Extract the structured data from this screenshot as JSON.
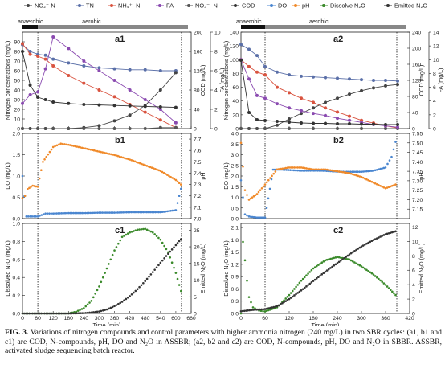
{
  "legend": {
    "items": [
      {
        "label": "NO₂⁻-N",
        "color": "#444444"
      },
      {
        "label": "TN",
        "color": "#5a6fa8"
      },
      {
        "label": "NH₄⁺- N",
        "color": "#d9533f"
      },
      {
        "label": "FA",
        "color": "#8a4ab0"
      },
      {
        "label": "NO₃⁻- N",
        "color": "#555555"
      },
      {
        "label": "COD",
        "color": "#333333"
      },
      {
        "label": "DO",
        "color": "#4a86d0"
      },
      {
        "label": "pH",
        "color": "#f08a2a"
      },
      {
        "label": "Dissolve N₂O",
        "color": "#3a8a2a"
      },
      {
        "label": "Emitted N₂O",
        "color": "#333333"
      }
    ]
  },
  "phase_labels": {
    "anaerobic": "anaerobic",
    "aerobic": "aerobic"
  },
  "panel_labels": [
    "a1",
    "a2",
    "b1",
    "b2",
    "c1",
    "c2"
  ],
  "axis_titles": {
    "nitrogen": "Nitrogen concentrations (mg/L)",
    "cod": "COD (mg/L)",
    "fa": "FA (mg/L)",
    "do": "DO (mg/L)",
    "ph": "pH",
    "dissolved_n2o": "Dissolved N₂O (mg/L)",
    "emitted_n2o": "Emitted N₂O (mg/L)",
    "time": "Time (min)"
  },
  "chart_data": [
    {
      "panel": "a1",
      "type": "line",
      "xlim": [
        0,
        660
      ],
      "ylim": [
        0,
        100
      ],
      "y2lim": [
        0,
        200
      ],
      "y3lim": [
        0,
        10
      ],
      "x_ticks": [
        "0",
        "60",
        "120",
        "180",
        "240",
        "300",
        "360",
        "420",
        "480",
        "540",
        "600",
        "660"
      ],
      "y_ticks": [
        "0",
        "10",
        "20",
        "30",
        "40",
        "50",
        "60",
        "70",
        "80",
        "90"
      ],
      "y2_ticks": [
        "0",
        "40",
        "80",
        "120",
        "160",
        "200"
      ],
      "y3_ticks": [
        "0",
        "2",
        "4",
        "6",
        "8",
        "10"
      ],
      "series": [
        {
          "name": "TN",
          "x": [
            0,
            30,
            60,
            90,
            120,
            180,
            240,
            300,
            360,
            420,
            480,
            540,
            600
          ],
          "values": [
            87,
            80,
            77,
            76,
            72,
            68,
            65,
            63,
            62,
            61,
            61,
            60,
            60
          ]
        },
        {
          "name": "NH₄⁺- N",
          "x": [
            0,
            30,
            60,
            90,
            120,
            180,
            240,
            300,
            360,
            420,
            480,
            540,
            600
          ],
          "values": [
            88,
            77,
            75,
            72,
            65,
            55,
            47,
            40,
            33,
            25,
            17,
            9,
            1
          ]
        },
        {
          "name": "NO₂⁻-N",
          "x": [
            0,
            30,
            60,
            90,
            120,
            180,
            240,
            300,
            360,
            420,
            480,
            540,
            600
          ],
          "values": [
            0,
            0,
            0,
            0,
            0,
            0,
            1,
            3,
            8,
            14,
            24,
            40,
            58
          ]
        },
        {
          "name": "NO₃⁻- N",
          "x": [
            0,
            60,
            120,
            180,
            240,
            300,
            360,
            420,
            480,
            540,
            600
          ],
          "values": [
            0,
            0,
            0,
            0,
            0,
            0,
            0,
            0,
            0,
            1,
            1
          ]
        },
        {
          "name": "FA",
          "x": [
            0,
            30,
            60,
            90,
            120,
            180,
            240,
            300,
            360,
            420,
            480,
            540,
            600
          ],
          "values": [
            2.6,
            3.5,
            3.8,
            6.2,
            9.5,
            8.3,
            7.0,
            6.0,
            5.0,
            4.0,
            3.0,
            2.0,
            0.6
          ]
        },
        {
          "name": "COD",
          "x": [
            0,
            30,
            60,
            90,
            120,
            180,
            240,
            300,
            360,
            420,
            480,
            540,
            600
          ],
          "values": [
            160,
            90,
            65,
            60,
            55,
            52,
            50,
            49,
            48,
            47,
            46,
            45,
            44
          ]
        }
      ]
    },
    {
      "panel": "a2",
      "type": "line",
      "xlim": [
        0,
        420
      ],
      "ylim": [
        0,
        140
      ],
      "y2lim": [
        0,
        240
      ],
      "y3lim": [
        0,
        14
      ],
      "x_ticks": [
        "0",
        "60",
        "120",
        "180",
        "240",
        "300",
        "360",
        "420"
      ],
      "y_ticks": [
        "0",
        "20",
        "40",
        "60",
        "80",
        "100",
        "120",
        "140"
      ],
      "y2_ticks": [
        "0",
        "40",
        "80",
        "120",
        "160",
        "200",
        "240"
      ],
      "y3_ticks": [
        "0",
        "2",
        "4",
        "6",
        "8",
        "10",
        "12",
        "14"
      ],
      "series": [
        {
          "name": "TN",
          "x": [
            0,
            20,
            40,
            60,
            90,
            120,
            150,
            180,
            210,
            240,
            270,
            300,
            330,
            360,
            390
          ],
          "values": [
            122,
            115,
            106,
            90,
            82,
            78,
            76,
            75,
            74,
            73,
            72,
            71,
            70,
            70,
            69
          ]
        },
        {
          "name": "NH₄⁺- N",
          "x": [
            0,
            20,
            40,
            60,
            90,
            120,
            150,
            180,
            210,
            240,
            270,
            300,
            330,
            360,
            390
          ],
          "values": [
            100,
            90,
            82,
            78,
            60,
            52,
            44,
            38,
            30,
            24,
            18,
            12,
            8,
            4,
            1
          ]
        },
        {
          "name": "NO₂⁻-N",
          "x": [
            0,
            20,
            40,
            60,
            90,
            120,
            150,
            180,
            210,
            240,
            270,
            300,
            330,
            360,
            390
          ],
          "values": [
            0,
            0,
            0,
            0,
            5,
            14,
            22,
            30,
            38,
            44,
            50,
            55,
            59,
            62,
            64
          ]
        },
        {
          "name": "NO₃⁻- N",
          "x": [
            0,
            60,
            120,
            180,
            240,
            300,
            360,
            390
          ],
          "values": [
            0,
            0,
            0,
            0,
            0,
            0,
            0,
            0
          ]
        },
        {
          "name": "FA",
          "x": [
            0,
            20,
            40,
            60,
            90,
            120,
            150,
            180,
            210,
            240,
            270,
            300,
            330,
            360,
            390
          ],
          "values": [
            10,
            7.2,
            4.8,
            4.4,
            3.6,
            3.0,
            2.6,
            2.2,
            1.9,
            1.5,
            1.2,
            0.9,
            0.6,
            0.4,
            0.2
          ]
        },
        {
          "name": "COD",
          "x": [
            0,
            20,
            40,
            60,
            90,
            120,
            150,
            180,
            210,
            240,
            270,
            300,
            330,
            360,
            390
          ],
          "values": [
            170,
            40,
            22,
            20,
            18,
            16,
            14,
            13,
            13,
            12,
            12,
            11,
            11,
            10,
            10
          ]
        }
      ]
    },
    {
      "panel": "b1",
      "type": "scatter",
      "xlim": [
        0,
        660
      ],
      "ylim": [
        0,
        2.0
      ],
      "y2lim": [
        7.0,
        7.75
      ],
      "y_ticks": [
        "0.0",
        "0.5",
        "1.0",
        "1.5",
        "2.0"
      ],
      "y2_ticks": [
        "7.0",
        "7.1",
        "7.2",
        "7.3",
        "7.4",
        "7.5",
        "7.6",
        "7.7"
      ],
      "series": [
        {
          "name": "DO",
          "x": [
            0,
            15,
            30,
            45,
            60,
            90,
            120,
            180,
            240,
            300,
            360,
            420,
            480,
            540,
            600,
            620
          ],
          "values": [
            1.0,
            0.05,
            0.05,
            0.05,
            0.05,
            0.12,
            0.12,
            0.13,
            0.13,
            0.14,
            0.14,
            0.15,
            0.15,
            0.15,
            0.2,
            0.7
          ]
        },
        {
          "name": "pH",
          "x": [
            0,
            10,
            20,
            40,
            60,
            80,
            120,
            150,
            180,
            240,
            300,
            360,
            420,
            480,
            540,
            600,
            620
          ],
          "values": [
            7.18,
            7.2,
            7.26,
            7.29,
            7.28,
            7.5,
            7.63,
            7.66,
            7.65,
            7.62,
            7.59,
            7.56,
            7.52,
            7.47,
            7.42,
            7.34,
            7.3
          ]
        }
      ]
    },
    {
      "panel": "b2",
      "type": "scatter",
      "xlim": [
        0,
        420
      ],
      "ylim": [
        0,
        4.0
      ],
      "y2lim": [
        7.1,
        7.55
      ],
      "y_ticks": [
        "0.0",
        "0.5",
        "1.0",
        "1.5",
        "2.0",
        "2.5",
        "3.0",
        "3.5",
        "4.0"
      ],
      "y2_ticks": [
        "7.15",
        "7.20",
        "7.25",
        "7.30",
        "7.35",
        "7.40",
        "7.45",
        "7.50",
        "7.55"
      ],
      "series": [
        {
          "name": "DO",
          "x": [
            0,
            10,
            20,
            40,
            60,
            80,
            100,
            150,
            200,
            250,
            300,
            330,
            360,
            375,
            385
          ],
          "values": [
            1.8,
            0.2,
            0.1,
            0.05,
            0.05,
            2.3,
            2.3,
            2.25,
            2.25,
            2.2,
            2.2,
            2.25,
            2.4,
            2.9,
            3.6
          ]
        },
        {
          "name": "pH",
          "x": [
            0,
            10,
            20,
            40,
            60,
            90,
            120,
            150,
            180,
            210,
            240,
            270,
            300,
            330,
            360,
            385
          ],
          "values": [
            7.5,
            7.25,
            7.2,
            7.23,
            7.28,
            7.36,
            7.37,
            7.37,
            7.36,
            7.36,
            7.35,
            7.34,
            7.32,
            7.29,
            7.26,
            7.28
          ]
        }
      ]
    },
    {
      "panel": "c1",
      "type": "scatter",
      "xlim": [
        0,
        660
      ],
      "ylim": [
        0,
        1.0
      ],
      "y2lim": [
        0,
        27
      ],
      "x_ticks": [
        "0",
        "60",
        "120",
        "180",
        "240",
        "300",
        "360",
        "420",
        "480",
        "540",
        "600",
        "660"
      ],
      "y_ticks": [
        "0.0",
        "0.2",
        "0.4",
        "0.6",
        "0.8",
        "1.0"
      ],
      "y2_ticks": [
        "0",
        "5",
        "10",
        "15",
        "20",
        "25"
      ],
      "series": [
        {
          "name": "Dissolve N₂O",
          "x": [
            0,
            60,
            120,
            180,
            210,
            240,
            270,
            300,
            330,
            360,
            390,
            420,
            450,
            480,
            510,
            540,
            570,
            600,
            620
          ],
          "values": [
            0,
            0,
            0,
            0,
            0.02,
            0.06,
            0.14,
            0.3,
            0.5,
            0.7,
            0.85,
            0.9,
            0.93,
            0.94,
            0.9,
            0.82,
            0.68,
            0.45,
            0.25
          ]
        },
        {
          "name": "Emitted N₂O",
          "x": [
            0,
            60,
            120,
            180,
            240,
            270,
            300,
            330,
            360,
            390,
            420,
            450,
            480,
            510,
            540,
            570,
            600,
            620
          ],
          "values": [
            0,
            0,
            0,
            0,
            0.1,
            0.3,
            0.6,
            1.2,
            2.2,
            3.5,
            5.2,
            7.3,
            9.7,
            12.4,
            15.2,
            17.9,
            20.5,
            22.3
          ]
        }
      ]
    },
    {
      "panel": "c2",
      "type": "scatter",
      "xlim": [
        0,
        420
      ],
      "ylim": [
        0,
        2.2
      ],
      "y2lim": [
        0,
        12.5
      ],
      "x_ticks": [
        "0",
        "60",
        "120",
        "180",
        "240",
        "300",
        "360",
        "420"
      ],
      "y_ticks": [
        "0.0",
        "0.3",
        "0.6",
        "0.9",
        "1.2",
        "1.5",
        "1.8",
        "2.1"
      ],
      "y2_ticks": [
        "0",
        "2",
        "4",
        "6",
        "8",
        "10",
        "12"
      ],
      "series": [
        {
          "name": "Dissolve N₂O",
          "x": [
            0,
            5,
            10,
            15,
            20,
            30,
            45,
            60,
            90,
            120,
            150,
            180,
            210,
            240,
            270,
            300,
            330,
            360,
            385
          ],
          "values": [
            0,
            1.75,
            1.3,
            0.8,
            0.4,
            0.15,
            0.07,
            0.05,
            0.15,
            0.45,
            0.8,
            1.1,
            1.3,
            1.38,
            1.32,
            1.15,
            0.95,
            0.7,
            0.45
          ]
        },
        {
          "name": "Emitted N₂O",
          "x": [
            0,
            30,
            60,
            90,
            120,
            150,
            180,
            210,
            240,
            270,
            300,
            330,
            360,
            385
          ],
          "values": [
            0.3,
            0.5,
            0.6,
            1.0,
            2.0,
            3.2,
            4.5,
            5.8,
            7.0,
            8.2,
            9.3,
            10.2,
            11.0,
            11.4
          ]
        }
      ]
    }
  ],
  "caption": {
    "fig_num": "FIG. 3.",
    "text": "Variations of nitrogen compounds and control parameters with higher ammonia nitrogen (240 mg/L) in two SBR cycles: (a1, b1 and c1) are COD, N-compounds, pH, DO and N₂O in ASSBR; (a2, b2 and c2) are COD, N-compounds, pH, DO and N₂O in SBBR. ASSBR, activated sludge sequencing batch reactor."
  }
}
